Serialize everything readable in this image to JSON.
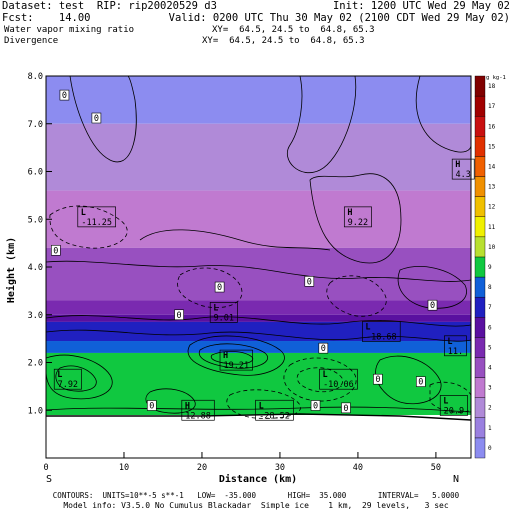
{
  "header": {
    "dataset_line": "Dataset: test  RIP: rip20020529 d3",
    "init_line": "Init: 1200 UTC Wed 29 May 02",
    "fcst_line": "Fcst:    14.00",
    "valid_line": "Valid: 0200 UTC Thu 30 May 02 (2100 CDT Wed 29 May 02)",
    "field1_name": "Water vapor mixing ratio",
    "field1_xy": "XY=  64.5, 24.5 to  64.8, 65.3",
    "field2_name": "Divergence",
    "field2_xy": "XY=  64.5, 24.5 to  64.8, 65.3"
  },
  "axes": {
    "ylabel": "Height (km)",
    "xlabel": "Distance (km)",
    "y_ticks": [
      "1.0",
      "2.0",
      "3.0",
      "4.0",
      "5.0",
      "6.0",
      "7.0",
      "8.0"
    ],
    "x_ticks": [
      "0",
      "10",
      "20",
      "30",
      "40",
      "50"
    ],
    "left_end": "S",
    "right_end": "N"
  },
  "colorbar": {
    "unit": "g kg-1",
    "labels": [
      "0",
      "1",
      "2",
      "3",
      "4",
      "5",
      "6",
      "7",
      "8",
      "9",
      "10",
      "11",
      "12",
      "13",
      "14",
      "15",
      "16",
      "17",
      "18"
    ],
    "colors": [
      "#8c8cf0",
      "#9a80e0",
      "#b08ad8",
      "#c07ad0",
      "#9850c0",
      "#7a2ab0",
      "#5a10a0",
      "#2020c0",
      "#1060d8",
      "#10c840",
      "#b8e030",
      "#f0f000",
      "#f0c000",
      "#f09000",
      "#f06000",
      "#e03000",
      "#c81010",
      "#a00000",
      "#800000"
    ]
  },
  "annotations": [
    {
      "kind": "0",
      "x": 2.3,
      "y": 7.6
    },
    {
      "kind": "0",
      "x": 6.4,
      "y": 7.12
    },
    {
      "kind": "0",
      "x": 1.2,
      "y": 4.35
    },
    {
      "kind": "0",
      "x": 22.2,
      "y": 3.58
    },
    {
      "kind": "0",
      "x": 33.7,
      "y": 3.7
    },
    {
      "kind": "0",
      "x": 49.5,
      "y": 3.2
    },
    {
      "kind": "0",
      "x": 17.0,
      "y": 3.0
    },
    {
      "kind": "0",
      "x": 35.5,
      "y": 2.3
    },
    {
      "kind": "0",
      "x": 13.5,
      "y": 1.1
    },
    {
      "kind": "0",
      "x": 38.4,
      "y": 1.05
    },
    {
      "kind": "0",
      "x": 48.0,
      "y": 1.6
    },
    {
      "kind": "0",
      "x": 42.5,
      "y": 1.65
    },
    {
      "kind": "0",
      "x": 34.5,
      "y": 1.1
    },
    {
      "kind": "L",
      "value": "-11.25",
      "x": 6.5,
      "y": 5.05
    },
    {
      "kind": "L",
      "value": "9.01",
      "x": 22.8,
      "y": 3.05
    },
    {
      "kind": "L",
      "value": "-18.68",
      "x": 43.0,
      "y": 2.65
    },
    {
      "kind": "L",
      "value": "11.",
      "x": 52.5,
      "y": 2.35
    },
    {
      "kind": "L",
      "value": "7.92",
      "x": 2.8,
      "y": 1.65
    },
    {
      "kind": "L",
      "value": "-10.06",
      "x": 37.5,
      "y": 1.65
    },
    {
      "kind": "L",
      "value": "-28.52",
      "x": 29.3,
      "y": 1.0
    },
    {
      "kind": "L",
      "value": "20.9",
      "x": 52.3,
      "y": 1.1
    },
    {
      "kind": "H",
      "value": "9.22",
      "x": 40.0,
      "y": 5.05
    },
    {
      "kind": "H",
      "value": "4.3",
      "x": 53.5,
      "y": 6.05
    },
    {
      "kind": "H",
      "value": "19.21",
      "x": 24.4,
      "y": 2.05
    },
    {
      "kind": "H",
      "value": "12.88",
      "x": 19.5,
      "y": 1.0
    }
  ],
  "footer": {
    "line1": "CONTOURS:  UNITS=10**-5 s**-1   LOW=  -35.000       HIGH=  35.000       INTERVAL=   5.0000",
    "line2": "Model info: V3.5.0 No Cumulus Blackadar  Simple ice    1 km,  29 levels,   3 sec"
  }
}
